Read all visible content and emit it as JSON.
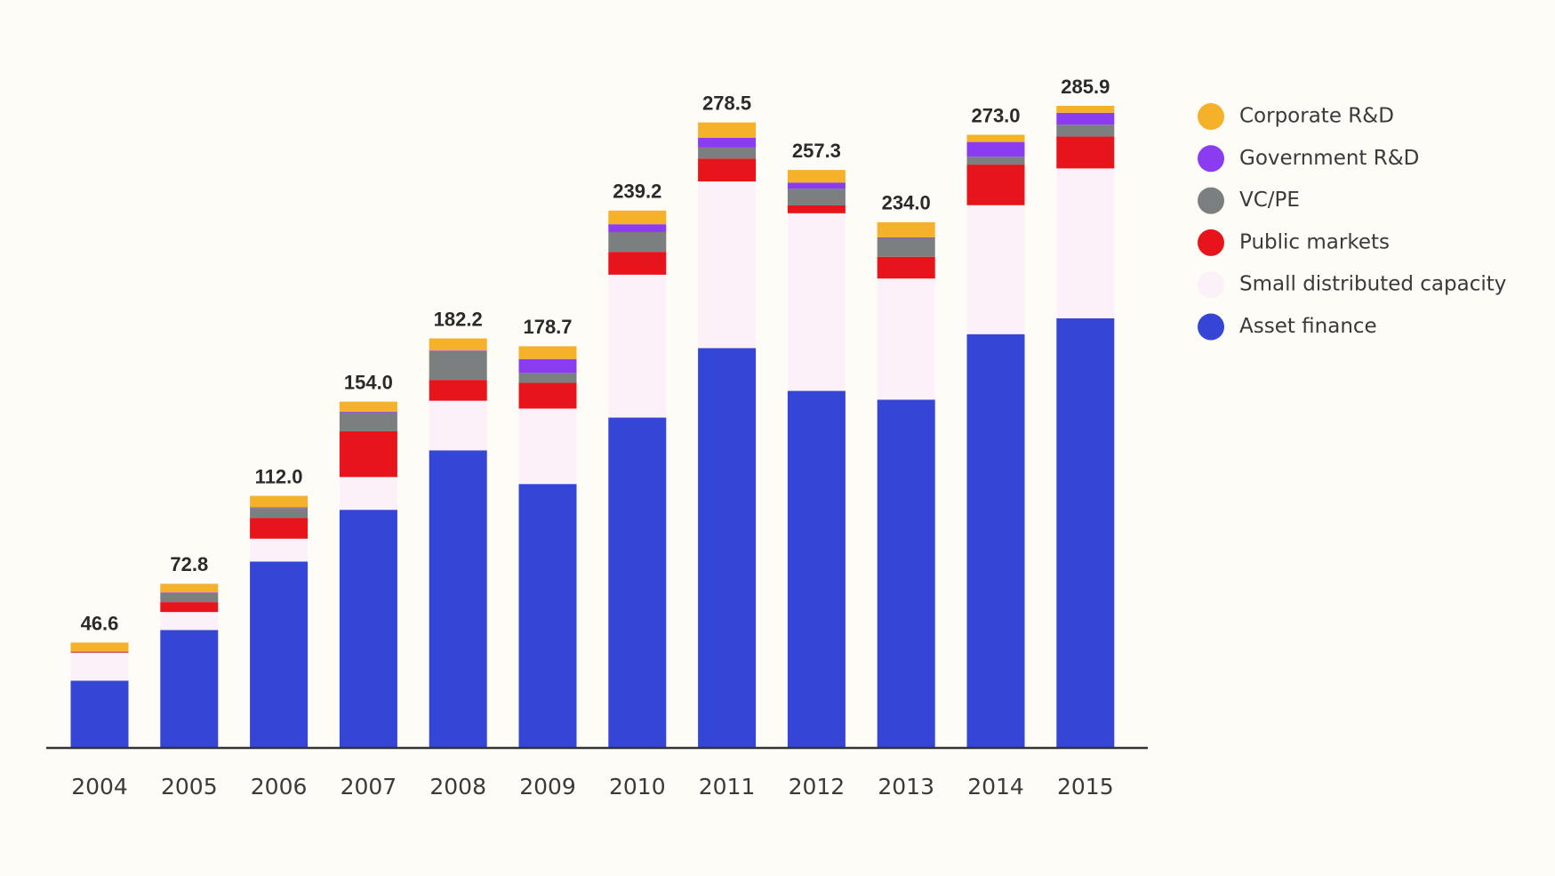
{
  "chart_data": {
    "type": "stacked_bar",
    "categories": [
      "2004",
      "2005",
      "2006",
      "2007",
      "2008",
      "2009",
      "2010",
      "2011",
      "2012",
      "2013",
      "2014",
      "2015"
    ],
    "total_labels": [
      "46.6",
      "72.8",
      "112.0",
      "154.0",
      "182.2",
      "178.7",
      "239.2",
      "278.5",
      "257.3",
      "234.0",
      "273.0",
      "285.9"
    ],
    "series": [
      {
        "name": "Asset finance",
        "color": "#3546d6",
        "values": [
          29.6,
          52.2,
          82.7,
          105.8,
          132.3,
          117.3,
          146.9,
          177.9,
          158.8,
          154.9,
          184.1,
          191.2
        ]
      },
      {
        "name": "Small distributed capacity",
        "color": "#fcf1f8",
        "values": [
          12.4,
          8.0,
          10.2,
          14.6,
          22.1,
          33.6,
          63.7,
          74.3,
          79.2,
          54.0,
          57.5,
          66.8
        ]
      },
      {
        "name": "Public markets",
        "color": "#e8141b",
        "values": [
          0.3,
          4.4,
          9.3,
          20.4,
          9.3,
          11.5,
          10.2,
          10.2,
          3.5,
          9.7,
          18.1,
          14.2
        ]
      },
      {
        "name": "VC/PE",
        "color": "#7b7f7f",
        "values": [
          0.3,
          4.0,
          4.4,
          8.4,
          12.8,
          4.4,
          8.8,
          4.9,
          7.5,
          8.4,
          3.5,
          5.3
        ]
      },
      {
        "name": "Government R&D",
        "color": "#8b3cf0",
        "values": [
          0,
          0.3,
          0.3,
          0.3,
          0.3,
          6.2,
          3.5,
          4.4,
          2.7,
          0.3,
          6.6,
          5.3
        ]
      },
      {
        "name": "Corporate R&D",
        "color": "#f5b12a",
        "values": [
          4.0,
          3.9,
          5.1,
          4.5,
          5.4,
          5.7,
          6.1,
          6.8,
          5.6,
          6.7,
          3.2,
          3.1
        ]
      }
    ]
  }
}
